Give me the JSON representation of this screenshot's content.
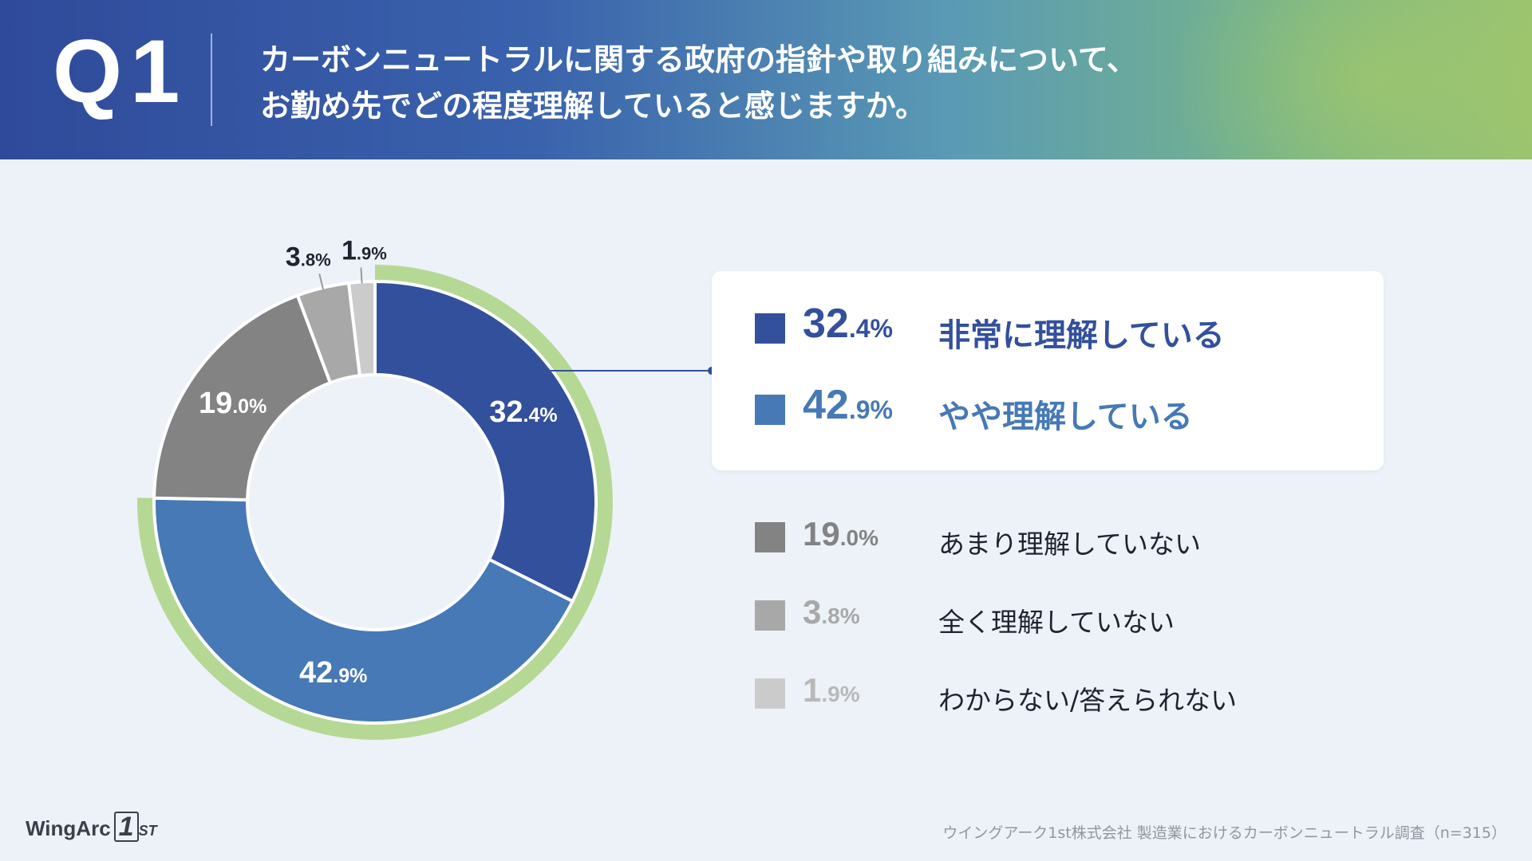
{
  "header": {
    "qnum": "Q1",
    "question_lines": [
      "カーボンニュートラルに関する政府の指針や取り組みについて、",
      "お勤め先でどの程度理解していると感じますか。"
    ]
  },
  "colors": {
    "very": "#33509c",
    "somewhat": "#4679b5",
    "not_much": "#838383",
    "not_at_all": "#a8a8a8",
    "unknown": "#cbcbcb",
    "highlight_ring": "#b6d895",
    "connector": "#33509c"
  },
  "legend": [
    {
      "key": "very",
      "pct_big": "32",
      "pct_small": ".4%",
      "label": "非常に理解している",
      "color": "#33509c"
    },
    {
      "key": "somewhat",
      "pct_big": "42",
      "pct_small": ".9%",
      "label": "やや理解している",
      "color": "#4679b5"
    },
    {
      "key": "not_much",
      "pct_big": "19",
      "pct_small": ".0%",
      "label": "あまり理解していない",
      "color": "#838383"
    },
    {
      "key": "not_at_all",
      "pct_big": "3",
      "pct_small": ".8%",
      "label": "全く理解していない",
      "color": "#a8a8a8"
    },
    {
      "key": "unknown",
      "pct_big": "1",
      "pct_small": ".9%",
      "label": "わからない/答えられない",
      "color": "#cbcbcb"
    }
  ],
  "chart_data": {
    "type": "pie",
    "title": "",
    "categories": [
      "非常に理解している",
      "やや理解している",
      "あまり理解していない",
      "全く理解していない",
      "わからない/答えられない"
    ],
    "values": [
      32.4,
      42.9,
      19.0,
      3.8,
      1.9
    ],
    "labels": [
      {
        "big": "32",
        "small": ".4%"
      },
      {
        "big": "42",
        "small": ".9%"
      },
      {
        "big": "19",
        "small": ".0%"
      },
      {
        "big": "3",
        "small": ".8%"
      },
      {
        "big": "1",
        "small": ".9%"
      }
    ],
    "highlighted": [
      0,
      1
    ],
    "start": "12 o'clock, clockwise",
    "donut": true
  },
  "footer": {
    "logo_word": "WingArc",
    "logo_one": "1",
    "logo_st": "ST",
    "source": "ウイングアーク1st株式会社 製造業におけるカーボンニュートラル調査（n=315）"
  }
}
